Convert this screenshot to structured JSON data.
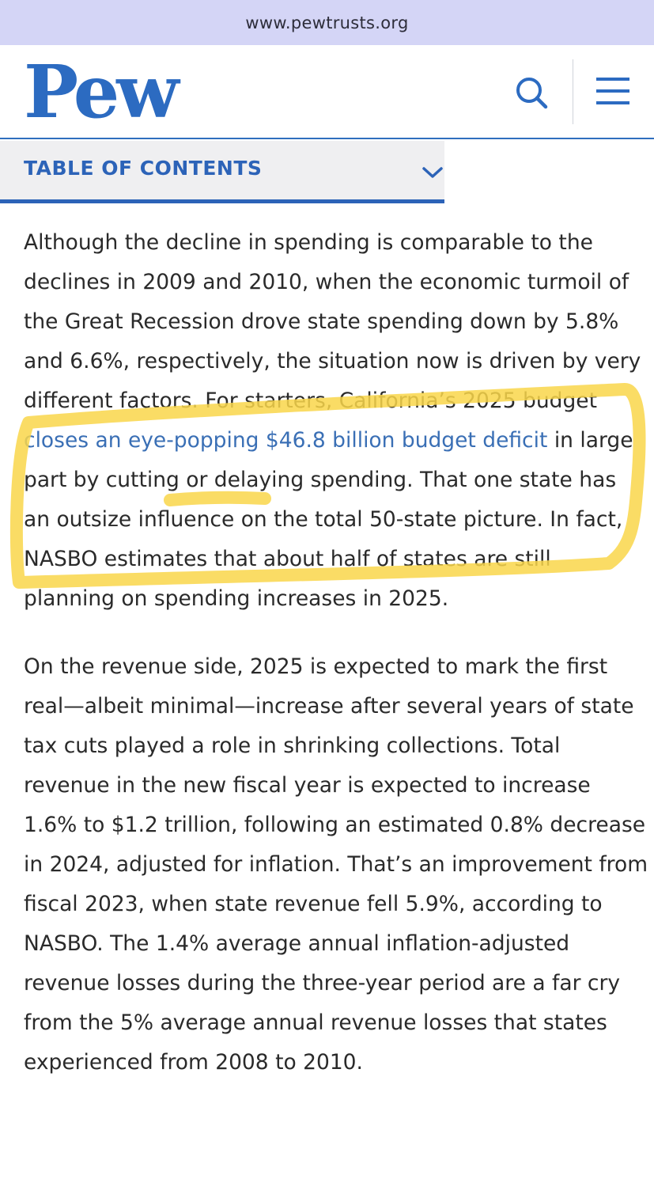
{
  "browser": {
    "url": "www.pewtrusts.org"
  },
  "header": {
    "logo": "Pew",
    "search_icon": "search-icon",
    "menu_icon": "menu-icon"
  },
  "toc": {
    "label": "TABLE OF CONTENTS",
    "icon": "chevron-down-icon"
  },
  "article": {
    "p1_before_link": "Although the decline in spending is comparable to the declines in 2009 and 2010, when the economic turmoil of the Great Recession drove state spending down by 5.8% and 6.6%, respectively, the situation now is driven by very different factors. For starters, California’s 2025 budget ",
    "p1_link": "closes an eye-popping $46.8 billion budget deficit",
    "p1_after_link": " in large part by cutting or delaying spending. That one state has an outsize influence on the total 50-state picture. In fact, NASBO estimates that about half of states are still planning on spending increases in 2025.",
    "p2": "On the revenue side, 2025 is expected to mark the first real—albeit minimal—increase after several years of state tax cuts played a role in shrinking collections. Total revenue in the new fiscal year is expected to increase 1.6% to $1.2 trillion, following an estimated 0.8% decrease in 2024, adjusted for inflation. That’s an improvement from fiscal 2023, when state revenue fell 5.9%, according to NASBO. The 1.4% average annual inflation-adjusted revenue losses during the three-year period are a far cry from the 5% average annual revenue losses that states experienced from 2008 to 2010."
  },
  "colors": {
    "brand_blue": "#2c6bc1",
    "link_blue": "#3a6fb5",
    "url_bar": "#d4d5f6",
    "highlighter": "#f9d64a"
  }
}
